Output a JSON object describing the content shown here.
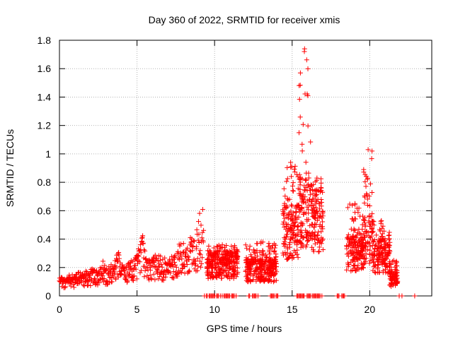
{
  "chart_data": {
    "type": "scatter",
    "title": "Day 360 of 2022, SRMTID for receiver xmis",
    "xlabel": "GPS time / hours",
    "ylabel": "SRMTID / TECUs",
    "xlim": [
      0,
      24
    ],
    "ylim": [
      0,
      1.8
    ],
    "xticks": [
      0,
      5,
      10,
      15,
      20
    ],
    "yticks": [
      0,
      0.2,
      0.4,
      0.6,
      0.8,
      1,
      1.2,
      1.4,
      1.6,
      1.8
    ],
    "grid": true,
    "marker": "+",
    "color": "#ff0000",
    "envelope": {
      "hours": [
        0,
        0.5,
        1,
        1.5,
        2,
        2.5,
        2.8,
        3,
        3.5,
        3.8,
        4,
        4.3,
        4.6,
        5,
        5.3,
        5.6,
        6,
        6.5,
        7,
        7.5,
        7.8,
        8,
        8.5,
        9,
        9.3
      ],
      "typical": [
        0.09,
        0.1,
        0.11,
        0.12,
        0.13,
        0.14,
        0.18,
        0.14,
        0.16,
        0.22,
        0.16,
        0.16,
        0.18,
        0.2,
        0.3,
        0.2,
        0.2,
        0.2,
        0.17,
        0.22,
        0.28,
        0.26,
        0.28,
        0.32,
        0.35
      ],
      "peak": [
        0.11,
        0.13,
        0.14,
        0.16,
        0.17,
        0.18,
        0.24,
        0.2,
        0.22,
        0.33,
        0.23,
        0.22,
        0.26,
        0.28,
        0.47,
        0.28,
        0.27,
        0.3,
        0.26,
        0.33,
        0.42,
        0.4,
        0.42,
        0.58,
        0.67
      ]
    },
    "bursts": [
      {
        "hours": [
          9.5,
          11.5
        ],
        "typical": 0.22,
        "peak": 0.36
      },
      {
        "hours": [
          12.0,
          14.0
        ],
        "typical": 0.18,
        "peak": 0.38
      },
      {
        "hours": [
          14.4,
          15.4
        ],
        "typical": 0.45,
        "peak": 0.94
      },
      {
        "hours": [
          15.4,
          16.2
        ],
        "typical": 0.6,
        "peak": 1.74
      },
      {
        "hours": [
          16.2,
          17.0
        ],
        "typical": 0.55,
        "peak": 0.83
      },
      {
        "hours": [
          18.5,
          19.6
        ],
        "typical": 0.3,
        "peak": 0.65
      },
      {
        "hours": [
          19.6,
          20.2
        ],
        "typical": 0.4,
        "peak": 1.03
      },
      {
        "hours": [
          20.2,
          21.3
        ],
        "typical": 0.28,
        "peak": 0.53
      },
      {
        "hours": [
          21.3,
          21.8
        ],
        "typical": 0.12,
        "peak": 0.25
      }
    ],
    "zero_marker_intervals": [
      [
        9.35,
        11.45
      ],
      [
        12.2,
        12.9
      ],
      [
        13.6,
        14.1
      ],
      [
        15.3,
        17.0
      ],
      [
        17.9,
        18.4
      ],
      [
        21.9,
        22.2
      ]
    ],
    "isolated_zero_points": [
      22.9
    ]
  }
}
